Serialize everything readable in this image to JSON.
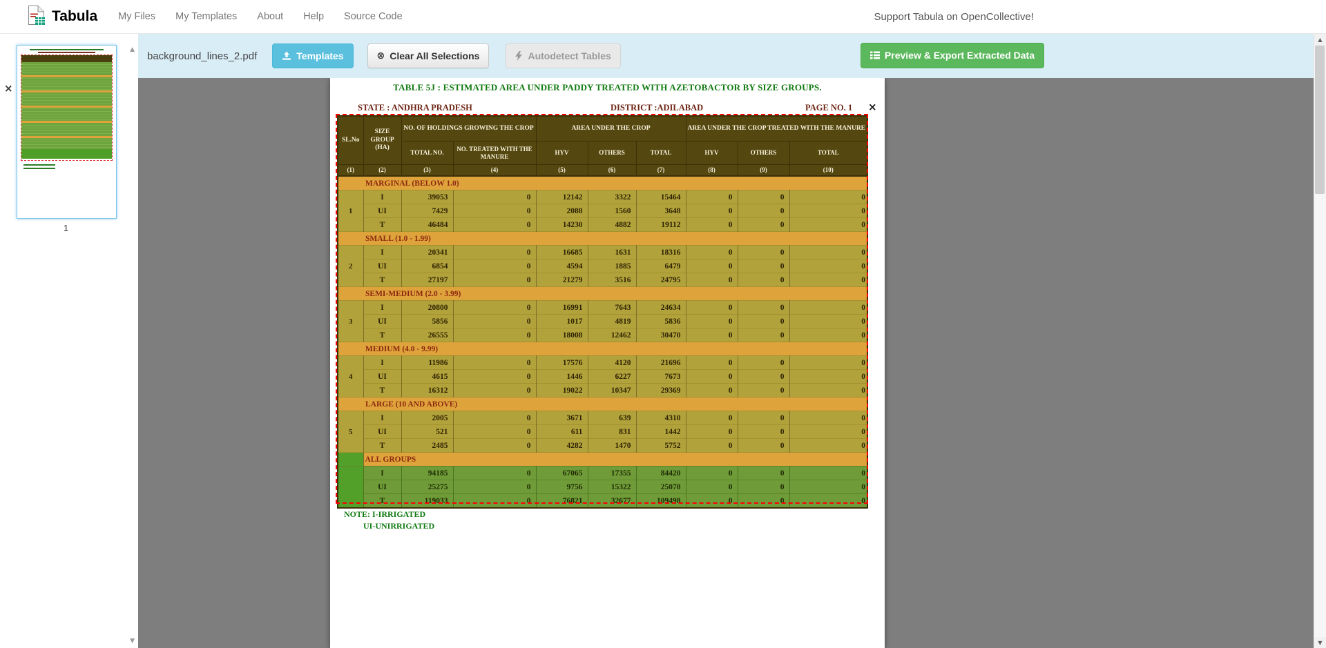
{
  "navbar": {
    "brand": "Tabula",
    "items": [
      "My Files",
      "My Templates",
      "About",
      "Help",
      "Source Code"
    ],
    "support": "Support Tabula on OpenCollective!"
  },
  "toolbar": {
    "filename": "background_lines_2.pdf",
    "templates": "Templates",
    "clear": "Clear All Selections",
    "autodetect": "Autodetect Tables",
    "export": "Preview & Export Extracted Data"
  },
  "sidebar": {
    "page_number": "1"
  },
  "glyphs": {
    "close": "×",
    "up": "▲",
    "down": "▼",
    "clear_circle": "⊗"
  },
  "page": {
    "title": "TABLE 5J : ESTIMATED AREA UNDER PADDY TREATED WITH AZETOBACTOR BY SIZE GROUPS.",
    "state": "STATE : ANDHRA PRADESH",
    "district": "DISTRICT :ADILABAD",
    "page_no": "PAGE NO. 1",
    "note1": "NOTE: I-IRRIGATED",
    "note2": "UI-UNIRRIGATED"
  },
  "table": {
    "head": {
      "slno": "SL.No",
      "size_group": "SIZE GROUP (HA)",
      "holdings": "NO. OF HOLDINGS GROWING THE CROP",
      "area": "AREA UNDER THE CROP",
      "treated": "AREA UNDER THE CROP TREATED WITH THE MANURE",
      "sub": [
        "TOTAL NO.",
        "NO. TREATED WITH THE MANURE",
        "HYV",
        "OTHERS",
        "TOTAL",
        "HYV",
        "OTHERS",
        "TOTAL"
      ],
      "nums": [
        "(1)",
        "(2)",
        "(3)",
        "(4)",
        "(5)",
        "(6)",
        "(7)",
        "(8)",
        "(9)",
        "(10)"
      ]
    },
    "groups": [
      {
        "slno": "1",
        "name": "MARGINAL (BELOW 1.0)",
        "all_groups": false,
        "rows": [
          {
            "label": "I",
            "values": [
              39053,
              0,
              12142,
              3322,
              15464,
              0,
              0,
              0
            ]
          },
          {
            "label": "UI",
            "values": [
              7429,
              0,
              2088,
              1560,
              3648,
              0,
              0,
              0
            ]
          },
          {
            "label": "T",
            "values": [
              46484,
              0,
              14230,
              4882,
              19112,
              0,
              0,
              0
            ]
          }
        ]
      },
      {
        "slno": "2",
        "name": "SMALL (1.0 - 1.99)",
        "all_groups": false,
        "rows": [
          {
            "label": "I",
            "values": [
              20341,
              0,
              16685,
              1631,
              18316,
              0,
              0,
              0
            ]
          },
          {
            "label": "UI",
            "values": [
              6854,
              0,
              4594,
              1885,
              6479,
              0,
              0,
              0
            ]
          },
          {
            "label": "T",
            "values": [
              27197,
              0,
              21279,
              3516,
              24795,
              0,
              0,
              0
            ]
          }
        ]
      },
      {
        "slno": "3",
        "name": "SEMI-MEDIUM (2.0 - 3.99)",
        "all_groups": false,
        "rows": [
          {
            "label": "I",
            "values": [
              20800,
              0,
              16991,
              7643,
              24634,
              0,
              0,
              0
            ]
          },
          {
            "label": "UI",
            "values": [
              5856,
              0,
              1017,
              4819,
              5836,
              0,
              0,
              0
            ]
          },
          {
            "label": "T",
            "values": [
              26555,
              0,
              18008,
              12462,
              30470,
              0,
              0,
              0
            ]
          }
        ]
      },
      {
        "slno": "4",
        "name": "MEDIUM (4.0 - 9.99)",
        "all_groups": false,
        "rows": [
          {
            "label": "I",
            "values": [
              11986,
              0,
              17576,
              4120,
              21696,
              0,
              0,
              0
            ]
          },
          {
            "label": "UI",
            "values": [
              4615,
              0,
              1446,
              6227,
              7673,
              0,
              0,
              0
            ]
          },
          {
            "label": "T",
            "values": [
              16312,
              0,
              19022,
              10347,
              29369,
              0,
              0,
              0
            ]
          }
        ]
      },
      {
        "slno": "5",
        "name": "LARGE (10 AND ABOVE)",
        "all_groups": false,
        "rows": [
          {
            "label": "I",
            "values": [
              2005,
              0,
              3671,
              639,
              4310,
              0,
              0,
              0
            ]
          },
          {
            "label": "UI",
            "values": [
              521,
              0,
              611,
              831,
              1442,
              0,
              0,
              0
            ]
          },
          {
            "label": "T",
            "values": [
              2485,
              0,
              4282,
              1470,
              5752,
              0,
              0,
              0
            ]
          }
        ]
      },
      {
        "slno": "",
        "name": "ALL GROUPS",
        "all_groups": true,
        "rows": [
          {
            "label": "I",
            "values": [
              94185,
              0,
              67065,
              17355,
              84420,
              0,
              0,
              0
            ]
          },
          {
            "label": "UI",
            "values": [
              25275,
              0,
              9756,
              15322,
              25078,
              0,
              0,
              0
            ]
          },
          {
            "label": "T",
            "values": [
              119033,
              0,
              76821,
              32677,
              109498,
              0,
              0,
              0
            ]
          }
        ]
      }
    ]
  }
}
